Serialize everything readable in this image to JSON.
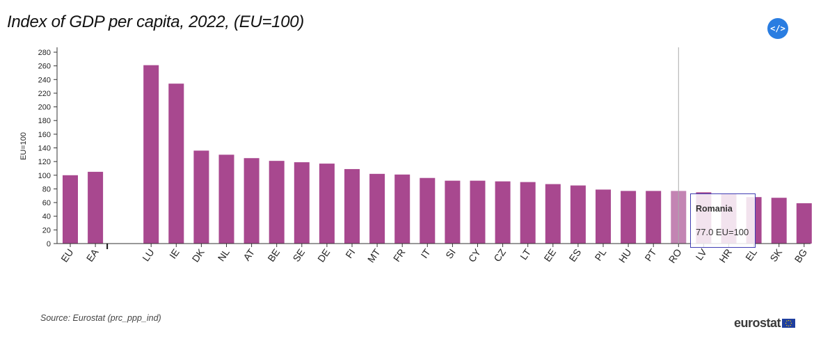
{
  "header": {
    "title": "Index of GDP per capita, 2022, (EU=100)",
    "embed_label": "</>"
  },
  "footer": {
    "source": "Source: Eurostat (prc_ppp_ind)",
    "logo": "eurostat"
  },
  "tooltip": {
    "title": "Romania",
    "value": "77.0 EU=100"
  },
  "colors": {
    "bar": "#a8488f",
    "bar_highlight": "#c384b3",
    "tooltip_border": "#3f3db3",
    "embed_button": "#2a7de1"
  },
  "chart_data": {
    "type": "bar",
    "title": "Index of GDP per capita, 2022, (EU=100)",
    "ylabel": "EU=100",
    "xlabel": "",
    "ylim": [
      0,
      280
    ],
    "yticks": [
      0,
      20,
      40,
      60,
      80,
      100,
      120,
      140,
      160,
      180,
      200,
      220,
      240,
      260,
      280
    ],
    "highlighted": "RO",
    "groups": [
      {
        "categories": [
          "EU",
          "EA"
        ]
      },
      {
        "categories": [
          "LU",
          "IE",
          "DK",
          "NL",
          "AT",
          "BE",
          "SE",
          "DE",
          "FI",
          "MT",
          "FR",
          "IT",
          "SI",
          "CY",
          "CZ",
          "LT",
          "EE",
          "ES",
          "PL",
          "HU",
          "PT",
          "RO",
          "LV",
          "HR",
          "EL",
          "SK",
          "BG"
        ]
      }
    ],
    "categories": [
      "EU",
      "EA",
      "LU",
      "IE",
      "DK",
      "NL",
      "AT",
      "BE",
      "SE",
      "DE",
      "FI",
      "MT",
      "FR",
      "IT",
      "SI",
      "CY",
      "CZ",
      "LT",
      "EE",
      "ES",
      "PL",
      "HU",
      "PT",
      "RO",
      "LV",
      "HR",
      "EL",
      "SK",
      "BG"
    ],
    "values": [
      100,
      105,
      261,
      234,
      136,
      130,
      125,
      121,
      119,
      117,
      109,
      102,
      101,
      96,
      92,
      92,
      91,
      90,
      87,
      85,
      79,
      77,
      77,
      77,
      75,
      73,
      68,
      67,
      59
    ]
  }
}
